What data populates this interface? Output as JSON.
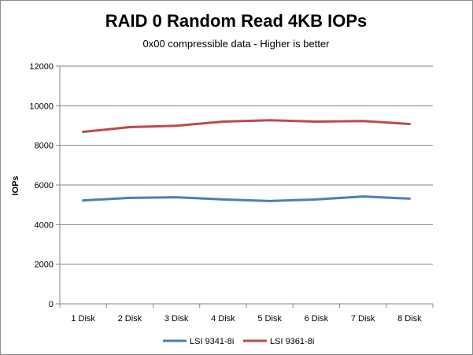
{
  "chart_data": {
    "type": "line",
    "title": "RAID 0 Random Read 4KB IOPs",
    "subtitle": "0x00 compressible data - Higher is better",
    "xlabel": "",
    "ylabel": "IOPs",
    "ylim": [
      0,
      12000
    ],
    "yticks": [
      0,
      2000,
      4000,
      6000,
      8000,
      10000,
      12000
    ],
    "grid": true,
    "legend_position": "bottom",
    "categories": [
      "1 Disk",
      "2 Disk",
      "3 Disk",
      "4 Disk",
      "5 Disk",
      "6 Disk",
      "7 Disk",
      "8 Disk"
    ],
    "series": [
      {
        "name": "LSI 9341-8i",
        "color": "#4a7ebb",
        "values": [
          5220,
          5350,
          5380,
          5270,
          5190,
          5270,
          5420,
          5310
        ]
      },
      {
        "name": "LSI 9361-8i",
        "color": "#be4b48",
        "values": [
          8680,
          8920,
          8990,
          9200,
          9270,
          9200,
          9230,
          9080
        ]
      }
    ]
  }
}
